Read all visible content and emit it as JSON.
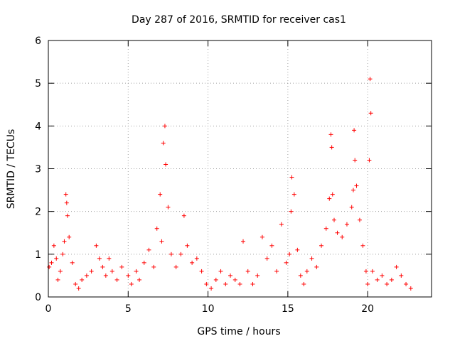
{
  "chart_data": {
    "type": "scatter",
    "title": "Day 287 of 2016, SRMTID for receiver cas1",
    "xlabel": "GPS time / hours",
    "ylabel": "SRMTID / TECUs",
    "xlim": [
      0,
      24
    ],
    "ylim": [
      0,
      6
    ],
    "xticks": [
      0,
      5,
      10,
      15,
      20
    ],
    "yticks": [
      0,
      1,
      2,
      3,
      4,
      5,
      6
    ],
    "grid": true,
    "marker": "+",
    "marker_color": "#ff0000",
    "series": [
      {
        "name": "SRMTID",
        "x": [
          0.05,
          0.2,
          0.35,
          0.5,
          0.6,
          0.75,
          0.9,
          1.0,
          1.1,
          1.15,
          1.2,
          1.3,
          1.5,
          1.7,
          1.9,
          2.1,
          2.4,
          2.7,
          3.0,
          3.2,
          3.4,
          3.6,
          3.8,
          4.0,
          4.3,
          4.6,
          5.0,
          5.2,
          5.5,
          5.7,
          6.0,
          6.3,
          6.6,
          6.8,
          7.0,
          7.1,
          7.2,
          7.3,
          7.35,
          7.5,
          7.7,
          8.0,
          8.3,
          8.5,
          8.7,
          9.0,
          9.3,
          9.6,
          9.9,
          10.2,
          10.5,
          10.8,
          11.1,
          11.4,
          11.7,
          12.0,
          12.2,
          12.5,
          12.8,
          13.1,
          13.4,
          13.7,
          14.0,
          14.3,
          14.6,
          14.9,
          15.1,
          15.2,
          15.25,
          15.4,
          15.6,
          15.8,
          16.0,
          16.2,
          16.5,
          16.8,
          17.1,
          17.4,
          17.6,
          17.7,
          17.75,
          17.8,
          17.9,
          18.1,
          18.4,
          18.7,
          19.0,
          19.1,
          19.15,
          19.2,
          19.3,
          19.5,
          19.7,
          19.9,
          20.0,
          20.1,
          20.15,
          20.2,
          20.3,
          20.6,
          20.9,
          21.2,
          21.5,
          21.8,
          22.1,
          22.4,
          22.7
        ],
        "y": [
          0.7,
          0.8,
          1.2,
          0.9,
          0.4,
          0.6,
          1.0,
          1.3,
          2.4,
          2.2,
          1.9,
          1.4,
          0.8,
          0.3,
          0.2,
          0.4,
          0.5,
          0.6,
          1.2,
          0.9,
          0.7,
          0.5,
          0.9,
          0.6,
          0.4,
          0.7,
          0.5,
          0.3,
          0.6,
          0.4,
          0.8,
          1.1,
          0.7,
          1.6,
          2.4,
          1.3,
          3.6,
          4.0,
          3.1,
          2.1,
          1.0,
          0.7,
          1.0,
          1.9,
          1.2,
          0.8,
          0.9,
          0.6,
          0.3,
          0.2,
          0.4,
          0.6,
          0.3,
          0.5,
          0.4,
          0.3,
          1.3,
          0.6,
          0.3,
          0.5,
          1.4,
          0.9,
          1.2,
          0.6,
          1.7,
          0.8,
          1.0,
          2.0,
          2.8,
          2.4,
          1.1,
          0.5,
          0.3,
          0.6,
          0.9,
          0.7,
          1.2,
          1.6,
          2.3,
          3.8,
          3.5,
          2.4,
          1.8,
          1.5,
          1.4,
          1.7,
          2.1,
          2.5,
          3.9,
          3.2,
          2.6,
          1.8,
          1.2,
          0.6,
          0.3,
          3.2,
          5.1,
          4.3,
          0.6,
          0.4,
          0.5,
          0.3,
          0.4,
          0.7,
          0.5,
          0.3,
          0.2
        ]
      }
    ]
  }
}
